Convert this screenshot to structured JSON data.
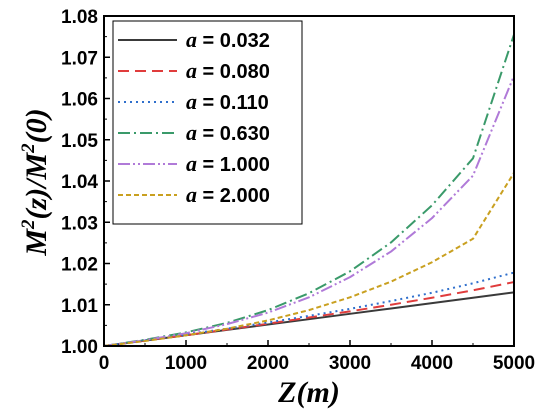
{
  "chart_data": {
    "type": "line",
    "xlabel": "Z(m)",
    "ylabel": "M²(z)/M²(0)",
    "ylabel_parts": {
      "m1": "M",
      "sup1": "2",
      "mid": "(z)/",
      "m2": "M",
      "sup2": "2",
      "end": "(0)"
    },
    "xlim": [
      0,
      5000
    ],
    "ylim": [
      1.0,
      1.08
    ],
    "xticks": [
      "0",
      "1000",
      "2000",
      "3000",
      "4000",
      "5000"
    ],
    "yticks": [
      "1.00",
      "1.01",
      "1.02",
      "1.03",
      "1.04",
      "1.05",
      "1.06",
      "1.07",
      "1.08"
    ],
    "x": [
      0,
      500,
      1000,
      1500,
      2000,
      2500,
      3000,
      3500,
      4000,
      4500,
      5000
    ],
    "legend_position": "top-left",
    "series": [
      {
        "name": "a = 0.032",
        "param": "a",
        "value": "0.032",
        "color": "#3a3a3a",
        "dash": "solid",
        "values": [
          1.0,
          1.0013,
          1.0026,
          1.0039,
          1.0052,
          1.0065,
          1.0078,
          1.0091,
          1.0104,
          1.0117,
          1.013
        ]
      },
      {
        "name": "a = 0.080",
        "param": "a",
        "value": "0.080",
        "color": "#e03c3c",
        "dash": "dash",
        "values": [
          1.0,
          1.0013,
          1.0026,
          1.004,
          1.0054,
          1.0069,
          1.0084,
          1.01,
          1.0117,
          1.0135,
          1.0155
        ]
      },
      {
        "name": "a = 0.110",
        "param": "a",
        "value": "0.110",
        "color": "#2f6fcc",
        "dash": "dot",
        "values": [
          1.0,
          1.0014,
          1.0028,
          1.0042,
          1.0057,
          1.0073,
          1.009,
          1.0109,
          1.0129,
          1.0152,
          1.0178
        ]
      },
      {
        "name": "a = 0.630",
        "param": "a",
        "value": "0.630",
        "color": "#3a9a6a",
        "dash": "dashdot",
        "values": [
          1.0,
          1.0015,
          1.0033,
          1.0056,
          1.0087,
          1.0128,
          1.0181,
          1.0251,
          1.0341,
          1.0455,
          1.0755
        ]
      },
      {
        "name": "a = 1.000",
        "param": "a",
        "value": "1.000",
        "color": "#b07ad8",
        "dash": "dashdotdot",
        "values": [
          1.0,
          1.0014,
          1.0031,
          1.0053,
          1.0081,
          1.0118,
          1.0167,
          1.0229,
          1.031,
          1.0413,
          1.0655
        ]
      },
      {
        "name": "a = 2.000",
        "param": "a",
        "value": "2.000",
        "color": "#c9a020",
        "dash": "shortdash",
        "values": [
          1.0,
          1.0012,
          1.0026,
          1.0042,
          1.0062,
          1.0087,
          1.0118,
          1.0156,
          1.0203,
          1.026,
          1.042
        ]
      }
    ]
  }
}
